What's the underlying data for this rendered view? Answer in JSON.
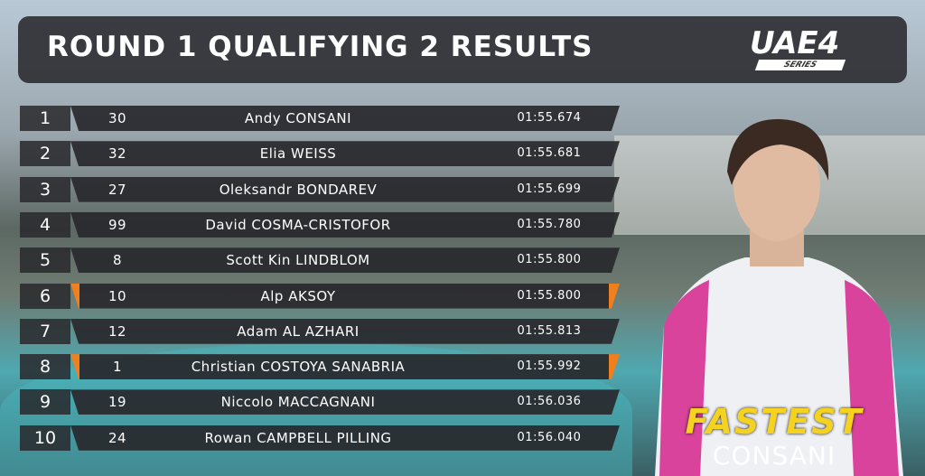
{
  "header": {
    "title": "ROUND 1 QUALIFYING 2 RESULTS",
    "logo": "UAE4",
    "logo_subtitle": "SERIES"
  },
  "table": {
    "rows": [
      {
        "position": 1,
        "number": 30,
        "driver": "Andy CONSANI",
        "time": "01:55.674",
        "highlighted": false
      },
      {
        "position": 2,
        "number": 32,
        "driver": "Elia WEISS",
        "time": "01:55.681",
        "highlighted": false
      },
      {
        "position": 3,
        "number": 27,
        "driver": "Oleksandr BONDAREV",
        "time": "01:55.699",
        "highlighted": false
      },
      {
        "position": 4,
        "number": 99,
        "driver": "David COSMA-CRISTOFOR",
        "time": "01:55.780",
        "highlighted": false
      },
      {
        "position": 5,
        "number": 8,
        "driver": "Scott Kin LINDBLOM",
        "time": "01:55.800",
        "highlighted": false
      },
      {
        "position": 6,
        "number": 10,
        "driver": "Alp AKSOY",
        "time": "01:55.800",
        "highlighted": true
      },
      {
        "position": 7,
        "number": 12,
        "driver": "Adam AL AZHARI",
        "time": "01:55.813",
        "highlighted": false
      },
      {
        "position": 8,
        "number": 1,
        "driver": "Christian COSTOYA SANABRIA",
        "time": "01:55.992",
        "highlighted": true
      },
      {
        "position": 9,
        "number": 19,
        "driver": "Niccolo MACCAGNANI",
        "time": "01:56.036",
        "highlighted": false
      },
      {
        "position": 10,
        "number": 24,
        "driver": "Rowan CAMPBELL PILLING",
        "time": "01:56.040",
        "highlighted": false
      }
    ]
  },
  "fastest": {
    "label": "FASTEST",
    "driver": "CONSANI"
  }
}
